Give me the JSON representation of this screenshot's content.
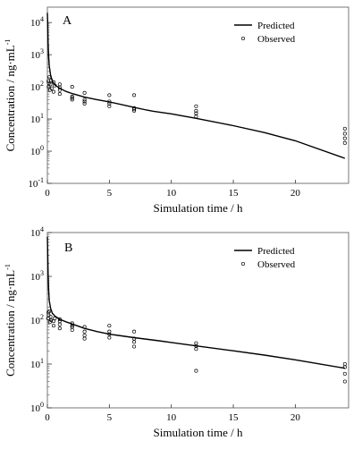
{
  "chart_data": [
    {
      "type": "line",
      "panel_label": "A",
      "xlabel": "Simulation time / h",
      "ylabel": "Concentration / ng·mL",
      "ylabel_superscript": "-1",
      "xlim": [
        0,
        24.3
      ],
      "ylim": [
        0.1,
        30000
      ],
      "yscale": "log",
      "x_ticks": [
        0,
        5,
        10,
        15,
        20
      ],
      "y_ticks": [
        {
          "base": "10",
          "exp": "-1",
          "value": 0.1
        },
        {
          "base": "10",
          "exp": "0",
          "value": 1
        },
        {
          "base": "10",
          "exp": "1",
          "value": 10
        },
        {
          "base": "10",
          "exp": "2",
          "value": 100
        },
        {
          "base": "10",
          "exp": "3",
          "value": 1000
        },
        {
          "base": "10",
          "exp": "4",
          "value": 10000
        }
      ],
      "legend": {
        "position": "top-right",
        "predicted_label": "Predicted",
        "observed_label": "Observed"
      },
      "series": [
        {
          "name": "Predicted",
          "kind": "line",
          "points": [
            [
              0,
              20000
            ],
            [
              0.03,
              9000
            ],
            [
              0.06,
              2500
            ],
            [
              0.1,
              900
            ],
            [
              0.15,
              450
            ],
            [
              0.25,
              240
            ],
            [
              0.4,
              150
            ],
            [
              0.6,
              115
            ],
            [
              1,
              90
            ],
            [
              1.5,
              72
            ],
            [
              2,
              62
            ],
            [
              3,
              48
            ],
            [
              4,
              40
            ],
            [
              5,
              34
            ],
            [
              7,
              23
            ],
            [
              8,
              19
            ],
            [
              8.5,
              17.5
            ],
            [
              10,
              14.5
            ],
            [
              12,
              10.5
            ],
            [
              15,
              6.2
            ],
            [
              17.5,
              3.8
            ],
            [
              20,
              2.1
            ],
            [
              24,
              0.6
            ]
          ]
        },
        {
          "name": "Observed",
          "kind": "scatter",
          "points": [
            [
              0.08,
              150
            ],
            [
              0.1,
              100
            ],
            [
              0.12,
              130
            ],
            [
              0.15,
              200
            ],
            [
              0.2,
              80
            ],
            [
              0.25,
              120
            ],
            [
              0.3,
              160
            ],
            [
              0.35,
              90
            ],
            [
              0.5,
              70
            ],
            [
              0.5,
              140
            ],
            [
              0.6,
              110
            ],
            [
              1,
              60
            ],
            [
              1,
              80
            ],
            [
              1,
              95
            ],
            [
              1,
              120
            ],
            [
              2,
              50
            ],
            [
              2,
              40
            ],
            [
              2,
              45
            ],
            [
              2,
              100
            ],
            [
              3,
              35
            ],
            [
              3,
              30
            ],
            [
              3,
              40
            ],
            [
              3,
              65
            ],
            [
              5,
              25
            ],
            [
              5,
              30
            ],
            [
              5,
              35
            ],
            [
              5,
              55
            ],
            [
              7,
              18
            ],
            [
              7,
              22
            ],
            [
              7,
              20
            ],
            [
              7,
              55
            ],
            [
              12,
              12
            ],
            [
              12,
              15
            ],
            [
              12,
              18
            ],
            [
              12,
              25
            ],
            [
              24,
              1.8
            ],
            [
              24,
              2.5
            ],
            [
              24,
              3.5
            ],
            [
              24,
              5
            ]
          ]
        }
      ]
    },
    {
      "type": "line",
      "panel_label": "B",
      "xlabel": "Simulation time / h",
      "ylabel": "Concentration / ng·mL",
      "ylabel_superscript": "-1",
      "xlim": [
        0,
        24.3
      ],
      "ylim": [
        1,
        10000
      ],
      "yscale": "log",
      "x_ticks": [
        0,
        5,
        10,
        15,
        20
      ],
      "y_ticks": [
        {
          "base": "10",
          "exp": "0",
          "value": 1
        },
        {
          "base": "10",
          "exp": "1",
          "value": 10
        },
        {
          "base": "10",
          "exp": "2",
          "value": 100
        },
        {
          "base": "10",
          "exp": "3",
          "value": 1000
        },
        {
          "base": "10",
          "exp": "4",
          "value": 10000
        }
      ],
      "legend": {
        "position": "top-right",
        "predicted_label": "Predicted",
        "observed_label": "Observed"
      },
      "series": [
        {
          "name": "Predicted",
          "kind": "line",
          "points": [
            [
              0,
              8000
            ],
            [
              0.03,
              3500
            ],
            [
              0.06,
              1200
            ],
            [
              0.1,
              500
            ],
            [
              0.15,
              280
            ],
            [
              0.25,
              190
            ],
            [
              0.4,
              145
            ],
            [
              0.6,
              125
            ],
            [
              1,
              105
            ],
            [
              1.5,
              92
            ],
            [
              2,
              82
            ],
            [
              3,
              65
            ],
            [
              4,
              55
            ],
            [
              5,
              48
            ],
            [
              7,
              40
            ],
            [
              9,
              34
            ],
            [
              10,
              31
            ],
            [
              12,
              26
            ],
            [
              15,
              20
            ],
            [
              17.5,
              16
            ],
            [
              20,
              12.5
            ],
            [
              24,
              8
            ]
          ]
        },
        {
          "name": "Observed",
          "kind": "scatter",
          "points": [
            [
              0.05,
              110
            ],
            [
              0.08,
              150
            ],
            [
              0.1,
              130
            ],
            [
              0.15,
              160
            ],
            [
              0.2,
              90
            ],
            [
              0.25,
              120
            ],
            [
              0.3,
              100
            ],
            [
              0.5,
              75
            ],
            [
              0.5,
              95
            ],
            [
              0.6,
              110
            ],
            [
              1,
              80
            ],
            [
              1,
              95
            ],
            [
              1,
              105
            ],
            [
              1,
              65
            ],
            [
              2,
              85
            ],
            [
              2,
              70
            ],
            [
              2,
              60
            ],
            [
              2,
              75
            ],
            [
              3,
              45
            ],
            [
              3,
              55
            ],
            [
              3,
              70
            ],
            [
              3,
              38
            ],
            [
              5,
              40
            ],
            [
              5,
              48
            ],
            [
              5,
              55
            ],
            [
              5,
              75
            ],
            [
              7,
              25
            ],
            [
              7,
              32
            ],
            [
              7,
              38
            ],
            [
              7,
              55
            ],
            [
              12,
              7
            ],
            [
              12,
              22
            ],
            [
              12,
              26
            ],
            [
              12,
              30
            ],
            [
              24,
              4
            ],
            [
              24,
              6
            ],
            [
              24,
              8.5
            ],
            [
              24,
              10
            ]
          ]
        }
      ]
    }
  ]
}
